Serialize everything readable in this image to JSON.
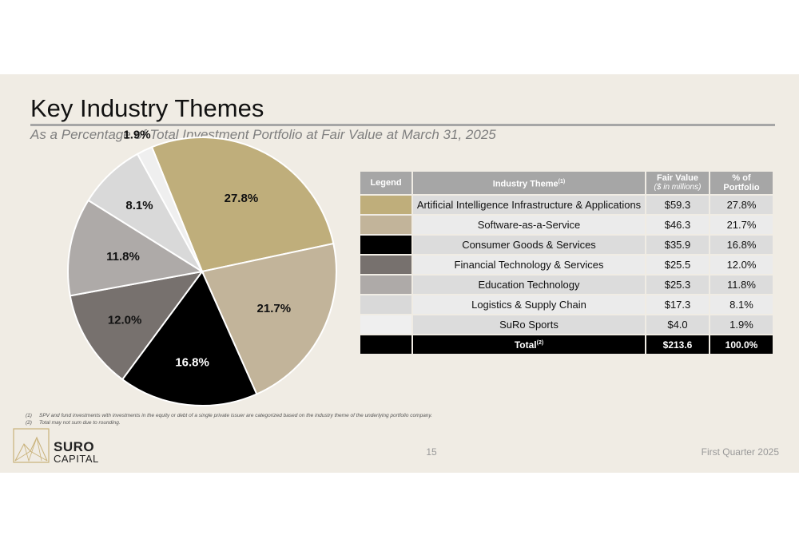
{
  "slide": {
    "title": "Key Industry Themes",
    "subtitle": "As a Percentage of Total Investment Portfolio at Fair Value at March 31, 2025",
    "page_number": "15",
    "period": "First Quarter 2025"
  },
  "logo": {
    "line1": "SURO",
    "line2": "CAPITAL",
    "color": "#c9b27a"
  },
  "table": {
    "headers": {
      "legend": "Legend",
      "theme": "Industry Theme",
      "theme_note": "(1)",
      "fair_value": "Fair Value",
      "fair_value_unit": "($ in millions)",
      "pct": "% of Portfolio"
    },
    "rows": [
      {
        "theme": "Artificial Intelligence Infrastructure & Applications",
        "value": "$59.3",
        "pct": "27.8%",
        "color": "#bfae7b"
      },
      {
        "theme": "Software-as-a-Service",
        "value": "$46.3",
        "pct": "21.7%",
        "color": "#c2b49a"
      },
      {
        "theme": "Consumer Goods & Services",
        "value": "$35.9",
        "pct": "16.8%",
        "color": "#000000"
      },
      {
        "theme": "Financial Technology & Services",
        "value": "$25.5",
        "pct": "12.0%",
        "color": "#77716e"
      },
      {
        "theme": "Education Technology",
        "value": "$25.3",
        "pct": "11.8%",
        "color": "#aeaaa8"
      },
      {
        "theme": "Logistics & Supply Chain",
        "value": "$17.3",
        "pct": "8.1%",
        "color": "#d9d9d9"
      },
      {
        "theme": "SuRo Sports",
        "value": "$4.0",
        "pct": "1.9%",
        "color": "#efefef"
      }
    ],
    "total": {
      "label": "Total",
      "note": "(2)",
      "value": "$213.6",
      "pct": "100.0%"
    }
  },
  "chart_data": {
    "type": "pie",
    "categories": [
      "Artificial Intelligence Infrastructure & Applications",
      "Software-as-a-Service",
      "Consumer Goods & Services",
      "Financial Technology & Services",
      "Education Technology",
      "Logistics & Supply Chain",
      "SuRo Sports"
    ],
    "values": [
      27.8,
      21.7,
      16.8,
      12.0,
      11.8,
      8.1,
      1.9
    ],
    "labels": [
      "27.8%",
      "21.7%",
      "16.8%",
      "12.0%",
      "11.8%",
      "8.1%",
      "1.9%"
    ],
    "colors": [
      "#bfae7b",
      "#c2b49a",
      "#000000",
      "#77716e",
      "#aeaaa8",
      "#d9d9d9",
      "#efefef"
    ],
    "label_colors": [
      "#111111",
      "#111111",
      "#ffffff",
      "#111111",
      "#111111",
      "#111111",
      "#111111"
    ]
  },
  "footnotes": [
    {
      "num": "(1)",
      "text": "SPV and fund investments with investments in the equity or debt of a single private issuer are categorized based on the industry theme of the underlying portfolio company."
    },
    {
      "num": "(2)",
      "text": "Total may not sum due to rounding."
    }
  ]
}
